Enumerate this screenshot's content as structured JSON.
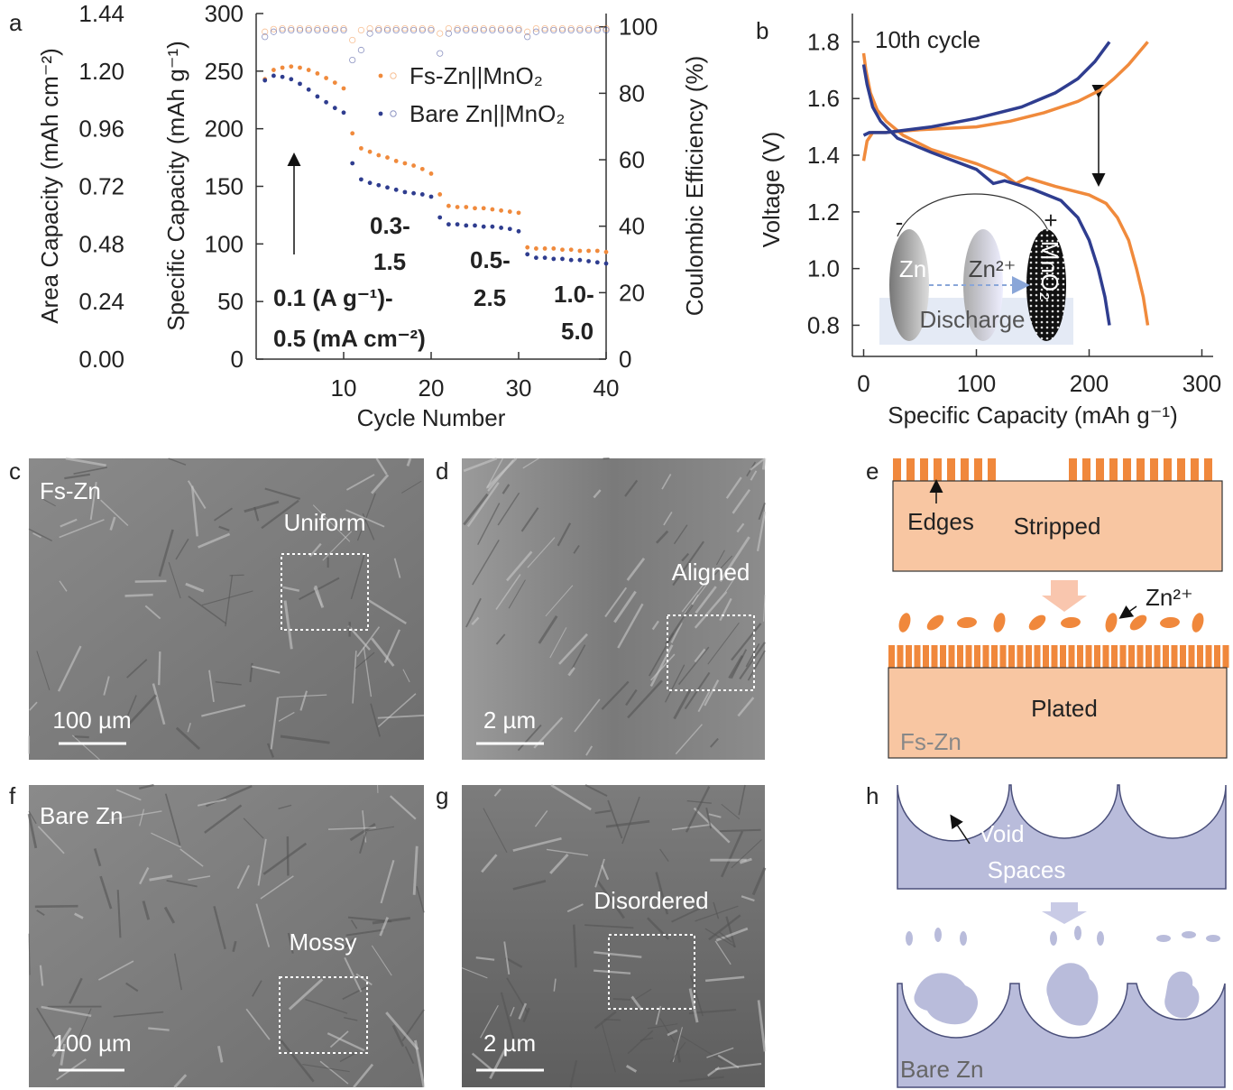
{
  "chart_data": [
    {
      "type": "scatter",
      "letter": "a",
      "xlabel": "Cycle Number",
      "ylabel": "Specific Capacity (mAh g⁻¹)",
      "y2label": "Coulombic Efficiency (%)",
      "y3label": "Area Capacity (mAh cm⁻²)",
      "x": [
        1,
        2,
        3,
        4,
        5,
        6,
        7,
        8,
        9,
        10,
        11,
        12,
        13,
        14,
        15,
        16,
        17,
        18,
        19,
        20,
        21,
        22,
        23,
        24,
        25,
        26,
        27,
        28,
        29,
        30,
        31,
        32,
        33,
        34,
        35,
        36,
        37,
        38,
        39,
        40
      ],
      "xlim": [
        0,
        40
      ],
      "xticks": [
        10,
        20,
        30,
        40
      ],
      "ylim": [
        0,
        300
      ],
      "yticks": [
        0,
        50,
        100,
        150,
        200,
        250,
        300
      ],
      "y2lim": [
        0,
        104
      ],
      "y2ticks": [
        0,
        20,
        40,
        60,
        80,
        100
      ],
      "y3lim": [
        0,
        1.44
      ],
      "y3ticks": [
        {
          "value": 0,
          "label": "0.00"
        },
        0.24,
        0.48,
        0.72,
        0.96,
        {
          "value": 1.2,
          "label": "1.20"
        },
        1.44
      ],
      "series": [
        {
          "name": "Fs-Zn||MnO₂",
          "color": "#f08a3c",
          "values": [
            243,
            251,
            253,
            254,
            253,
            251,
            248,
            244,
            240,
            235,
            196,
            183,
            180,
            177,
            175,
            172,
            170,
            168,
            165,
            161,
            143,
            133,
            132,
            132,
            131,
            131,
            130,
            129,
            128,
            127,
            97,
            96,
            96,
            96,
            95,
            95,
            94,
            94,
            94,
            93
          ]
        },
        {
          "name": "Bare Zn||MnO₂",
          "color": "#2f3d8f",
          "values": [
            242,
            246,
            245,
            243,
            239,
            234,
            228,
            223,
            218,
            214,
            170,
            156,
            153,
            151,
            149,
            147,
            145,
            144,
            143,
            141,
            123,
            117,
            117,
            116,
            116,
            115,
            115,
            114,
            113,
            111,
            91,
            88,
            88,
            87,
            87,
            86,
            86,
            85,
            84,
            83
          ]
        },
        {
          "color": "#f08a3c",
          "marker": "open",
          "axis": "y2",
          "values": [
            98.5,
            99.3,
            99.5,
            99.5,
            99.5,
            99.5,
            99.5,
            99.5,
            99.5,
            99.5,
            96,
            99,
            99.5,
            99.5,
            99.5,
            99.5,
            99.5,
            99.5,
            99.5,
            99.5,
            98,
            99.5,
            99.5,
            99.5,
            99.5,
            99.5,
            99.5,
            99.5,
            99.5,
            99.5,
            98.5,
            99.5,
            99.5,
            99.5,
            99.5,
            99.5,
            99.5,
            99.5,
            99.5,
            99.5
          ]
        },
        {
          "color": "#2f3d8f",
          "marker": "open",
          "axis": "y2",
          "values": [
            97,
            98.5,
            99,
            99,
            99,
            99,
            99,
            99,
            99,
            99,
            90,
            93,
            98,
            99,
            99,
            99,
            99,
            99,
            99,
            99,
            92,
            98,
            99,
            99,
            99,
            99,
            99,
            99,
            99,
            99,
            97,
            98.5,
            99,
            99,
            99,
            99,
            99,
            99,
            99,
            99
          ]
        }
      ],
      "annotations": [
        "0.1 (A g⁻¹)-",
        "0.5 (mA cm⁻²)",
        "0.3-",
        "1.5",
        "0.5-",
        "2.5",
        "1.0-",
        "5.0"
      ]
    },
    {
      "type": "line",
      "letter": "b",
      "xlabel": "Specific Capacity (mAh g⁻¹)",
      "ylabel": "Voltage (V)",
      "xlim": [
        -10,
        310
      ],
      "xticks": [
        0,
        100,
        200,
        300
      ],
      "ylim": [
        0.69,
        1.9
      ],
      "yticks": [
        0.8,
        {
          "value": 1,
          "label": "1.0"
        },
        1.2,
        1.4,
        1.6,
        1.8
      ],
      "series": [
        {
          "color": "#f08a3c",
          "x": [
            0,
            3,
            8,
            20,
            50,
            100,
            130,
            160,
            190,
            210,
            222,
            235,
            252
          ],
          "values": [
            1.38,
            1.45,
            1.48,
            1.48,
            1.49,
            1.5,
            1.52,
            1.55,
            1.59,
            1.63,
            1.67,
            1.72,
            1.8
          ]
        },
        {
          "color": "#f08a3c",
          "x": [
            0,
            2,
            6,
            12,
            20,
            35,
            60,
            100,
            125,
            135,
            145,
            170,
            200,
            215,
            225,
            235,
            242,
            248,
            252
          ],
          "values": [
            1.76,
            1.7,
            1.62,
            1.56,
            1.52,
            1.47,
            1.42,
            1.37,
            1.33,
            1.3,
            1.32,
            1.29,
            1.26,
            1.23,
            1.18,
            1.1,
            1.0,
            0.9,
            0.8
          ]
        },
        {
          "color": "#2f3d8f",
          "x": [
            0,
            5,
            20,
            60,
            100,
            140,
            170,
            190,
            205,
            218
          ],
          "values": [
            1.47,
            1.48,
            1.48,
            1.5,
            1.53,
            1.57,
            1.62,
            1.67,
            1.73,
            1.8
          ]
        },
        {
          "color": "#2f3d8f",
          "x": [
            0,
            3,
            8,
            15,
            30,
            60,
            100,
            115,
            125,
            150,
            175,
            190,
            200,
            208,
            214,
            218
          ],
          "values": [
            1.72,
            1.65,
            1.57,
            1.52,
            1.46,
            1.41,
            1.35,
            1.3,
            1.31,
            1.28,
            1.24,
            1.18,
            1.1,
            1.0,
            0.9,
            0.8
          ]
        }
      ],
      "annotations": [
        "10th cycle"
      ],
      "inset_labels": [
        "-",
        "+",
        "Zn",
        "Zn²⁺",
        "MnO₂",
        "Discharge"
      ]
    }
  ],
  "panels": [
    {
      "letter": "c",
      "texts": [
        "Fs-Zn",
        "Uniform",
        "100 µm"
      ]
    },
    {
      "letter": "d",
      "texts": [
        "Aligned",
        "2 µm"
      ]
    },
    {
      "letter": "e",
      "texts": [
        "Edges",
        "Stripped",
        "Zn²⁺",
        "Plated",
        "Fs-Zn"
      ]
    },
    {
      "letter": "f",
      "texts": [
        "Bare Zn",
        "Mossy",
        "100 µm"
      ]
    },
    {
      "letter": "g",
      "texts": [
        "Disordered",
        "2 µm"
      ]
    },
    {
      "letter": "h",
      "texts": [
        "Void",
        "Spaces",
        "Bare Zn"
      ]
    }
  ]
}
